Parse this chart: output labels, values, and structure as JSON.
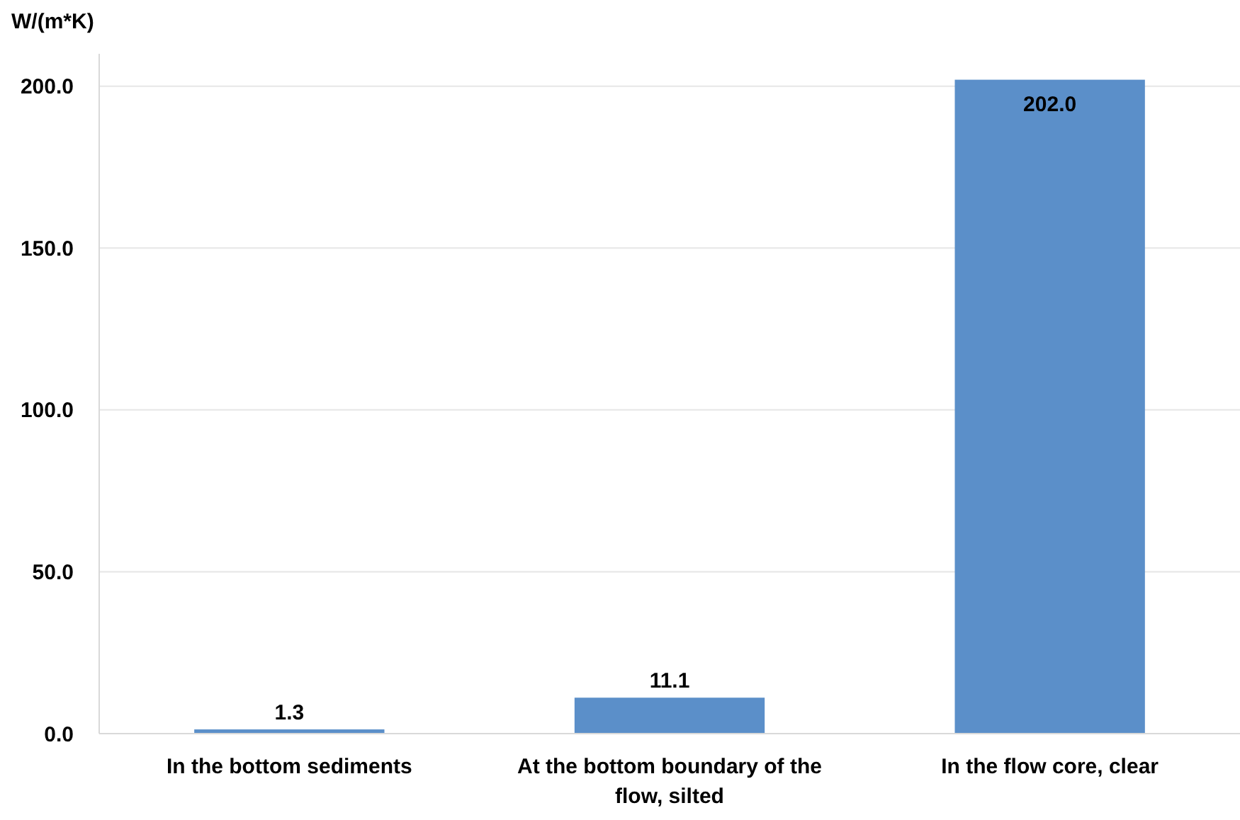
{
  "chart_data": {
    "type": "bar",
    "ylabel": "W/(m*K)",
    "categories": [
      "In the bottom sediments",
      "At the bottom boundary of the flow, silted",
      "In the flow core, clear"
    ],
    "values": [
      1.3,
      11.1,
      202.0
    ],
    "color": "#5b8fc9",
    "value_labels": [
      "1.3",
      "11.1",
      "202.0"
    ],
    "ylim": [
      0,
      210
    ],
    "yticks": [
      {
        "value": 0,
        "label": "0.0"
      },
      {
        "value": 50,
        "label": "50.0"
      },
      {
        "value": 100,
        "label": "100.0"
      },
      {
        "value": 150,
        "label": "150.0"
      },
      {
        "value": 200,
        "label": "200.0"
      }
    ],
    "grid": "y"
  }
}
